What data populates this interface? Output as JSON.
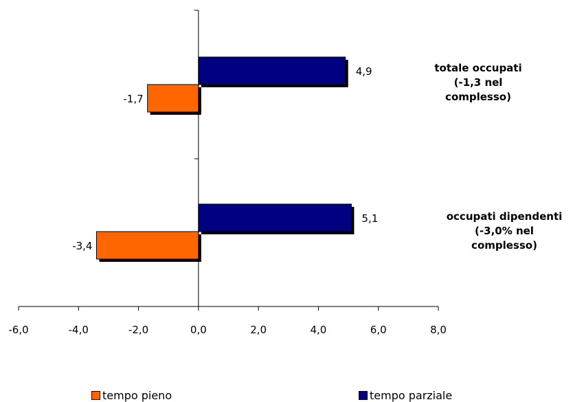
{
  "chart_data": {
    "type": "bar",
    "orientation": "horizontal",
    "categories": [
      {
        "line1": "totale occupati",
        "line2": "(-1,3 nel",
        "line3": "complesso)"
      },
      {
        "line1": "occupati dipendenti",
        "line2": "(-3,0% nel",
        "line3": "complesso)"
      }
    ],
    "series": [
      {
        "name": "tempo pieno",
        "color": "#ff6600",
        "values": [
          -1.7,
          -3.4
        ],
        "labels": [
          "-1,7",
          "-3,4"
        ]
      },
      {
        "name": "tempo parziale",
        "color": "#000080",
        "values": [
          4.9,
          5.1
        ],
        "labels": [
          "4,9",
          "5,1"
        ]
      }
    ],
    "xlim": [
      -6,
      8
    ],
    "xticks": [
      "-6,0",
      "-4,0",
      "-2,0",
      "0,0",
      "2,0",
      "4,0",
      "6,0",
      "8,0"
    ],
    "grid": false,
    "legend_position": "bottom"
  }
}
